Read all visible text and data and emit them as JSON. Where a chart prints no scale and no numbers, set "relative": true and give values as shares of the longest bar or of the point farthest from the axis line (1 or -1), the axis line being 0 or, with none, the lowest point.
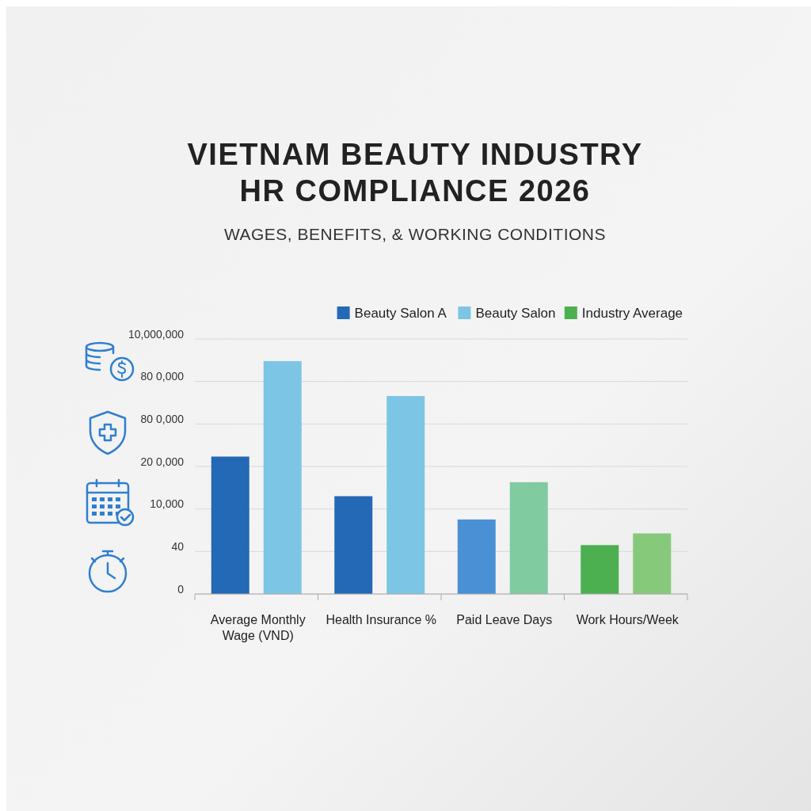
{
  "chart_data": {
    "type": "bar",
    "title": "VIETNAM BEAUTY INDUSTRY\nHR COMPLIANCE 2026",
    "subtitle": "WAGES, BENEFITS, & WORKING CONDITIONS",
    "categories": [
      "Average Monthly\nWage (VND)",
      "Health Insurance %",
      "Paid Leave Days",
      "Work Hours/Week"
    ],
    "series": [
      {
        "name": "Beauty Salon A",
        "color": "#2369b5",
        "colors": [
          "#2369b5",
          "#2369b5",
          "#4a90d4",
          "#4cb050"
        ],
        "values": [
          0.59,
          0.42,
          0.32,
          0.21
        ]
      },
      {
        "name": "Beauty Salon",
        "color": "#7cc5e5",
        "colors": [
          "#7cc5e5",
          "#7cc5e5",
          "#80cba0",
          "#86c97a"
        ],
        "values": [
          1,
          0.85,
          0.48,
          0.26
        ]
      },
      {
        "name": "Industry Average",
        "color": "#4cb050",
        "values": [
          null,
          null,
          null,
          null
        ]
      }
    ],
    "relative": true,
    "annotations": [
      "0",
      "40",
      "10,000",
      "20 0,000",
      "80 0,000",
      "80 0,000",
      "10,000,000"
    ],
    "grid": true,
    "legend": "top right"
  }
}
